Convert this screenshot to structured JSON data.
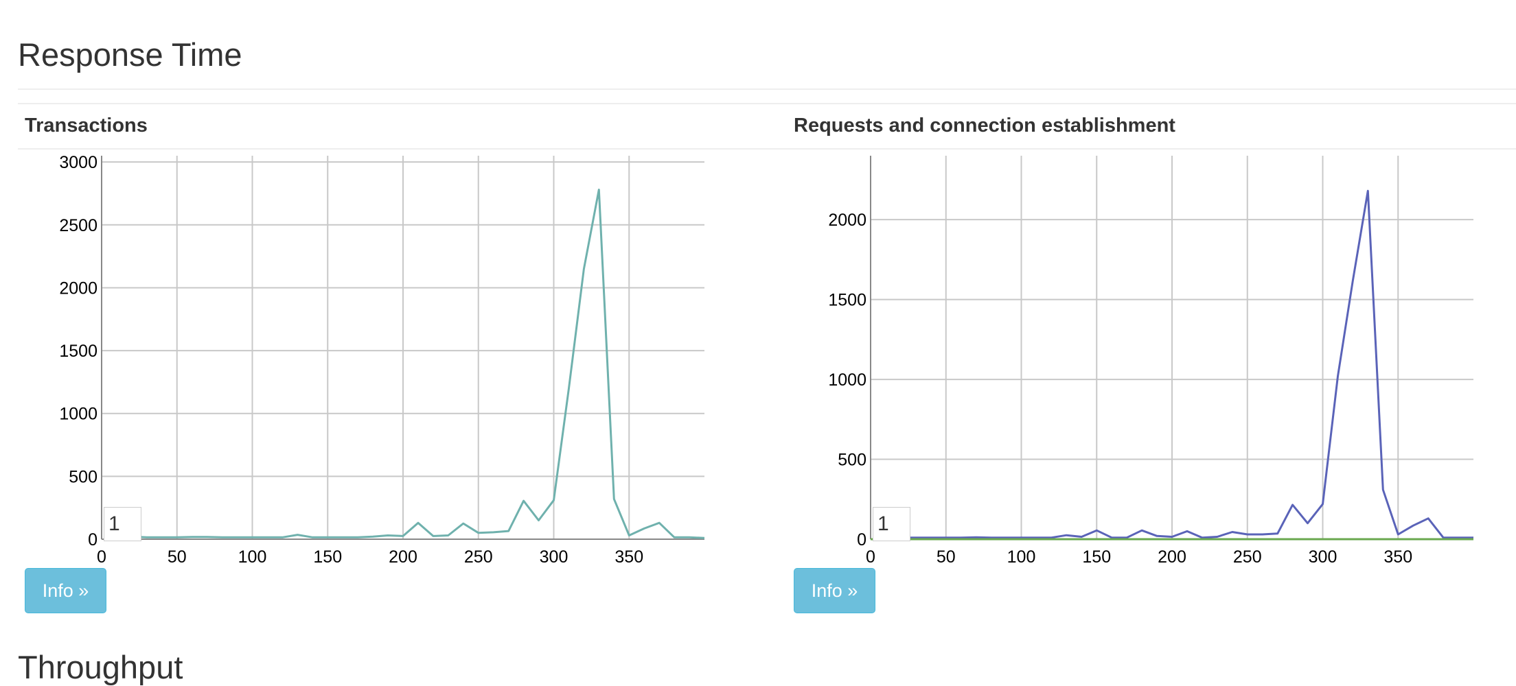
{
  "sections": {
    "response_time": "Response Time",
    "throughput": "Throughput"
  },
  "panels": [
    {
      "title": "Transactions",
      "button_label": "Info »",
      "legend_text": "1"
    },
    {
      "title": "Requests and connection establishment",
      "button_label": "Info »",
      "legend_text": "1"
    }
  ],
  "colors": {
    "transactions_line": "#6fb1ad",
    "requests_line": "#5a63b8",
    "connections_line": "#6aa84f",
    "button": "#6cbfdc"
  },
  "chart_data": [
    {
      "type": "line",
      "title": "",
      "xlabel": "",
      "ylabel": "",
      "xlim": [
        0,
        400
      ],
      "ylim": [
        0,
        3050
      ],
      "xticks": [
        0,
        50,
        100,
        150,
        200,
        250,
        300,
        350
      ],
      "yticks": [
        0,
        500,
        1000,
        1500,
        2000,
        2500,
        3000
      ],
      "grid": true,
      "legend": "bottom-left",
      "series": [
        {
          "name": "1",
          "x": [
            20,
            30,
            40,
            50,
            60,
            70,
            80,
            90,
            100,
            110,
            120,
            130,
            140,
            150,
            160,
            170,
            180,
            190,
            200,
            210,
            220,
            230,
            240,
            250,
            260,
            270,
            280,
            290,
            300,
            310,
            320,
            330,
            340,
            350,
            360,
            370,
            380,
            390,
            400
          ],
          "y": [
            20,
            15,
            15,
            15,
            18,
            18,
            15,
            15,
            15,
            15,
            15,
            35,
            15,
            15,
            15,
            15,
            20,
            30,
            25,
            130,
            25,
            30,
            125,
            50,
            55,
            65,
            305,
            150,
            310,
            1200,
            2150,
            2780,
            320,
            30,
            85,
            130,
            15,
            15,
            10
          ]
        }
      ]
    },
    {
      "type": "line",
      "title": "",
      "xlabel": "",
      "ylabel": "",
      "xlim": [
        0,
        400
      ],
      "ylim": [
        0,
        2400
      ],
      "xticks": [
        0,
        50,
        100,
        150,
        200,
        250,
        300,
        350
      ],
      "yticks": [
        0,
        500,
        1000,
        1500,
        2000
      ],
      "grid": true,
      "legend": "bottom-left",
      "series": [
        {
          "name": "1",
          "x": [
            20,
            30,
            40,
            50,
            60,
            70,
            80,
            90,
            100,
            110,
            120,
            130,
            140,
            150,
            160,
            170,
            180,
            190,
            200,
            210,
            220,
            230,
            240,
            250,
            260,
            270,
            280,
            290,
            300,
            310,
            320,
            330,
            340,
            350,
            360,
            370,
            380,
            390,
            400
          ],
          "y": [
            10,
            10,
            10,
            10,
            10,
            12,
            10,
            10,
            10,
            10,
            10,
            25,
            15,
            55,
            10,
            10,
            55,
            20,
            15,
            50,
            10,
            15,
            45,
            30,
            30,
            35,
            215,
            100,
            220,
            1020,
            1620,
            2180,
            310,
            30,
            85,
            130,
            10,
            10,
            10
          ]
        },
        {
          "name": "",
          "x": [
            0,
            400
          ],
          "y": [
            0,
            0
          ]
        }
      ]
    }
  ]
}
